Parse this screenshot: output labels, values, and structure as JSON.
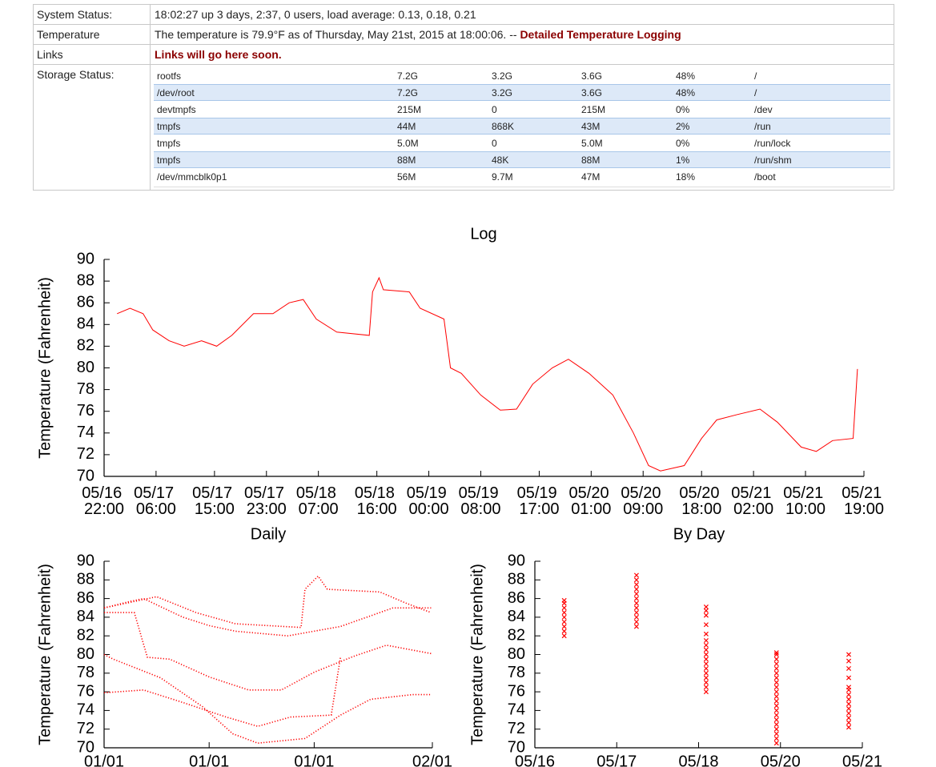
{
  "status_table": {
    "rows": [
      {
        "label": "System Status:",
        "value": "18:02:27 up 3 days, 2:37, 0 users, load average: 0.13, 0.18, 0.21"
      },
      {
        "label": "Temperature",
        "value": "The temperature is 79.9°F as of Thursday, May 21st, 2015 at 18:00:06. --",
        "link": "Detailed Temperature Logging"
      },
      {
        "label": "Links",
        "link": "Links will go here soon."
      },
      {
        "label": "Storage Status:",
        "storage": [
          [
            "rootfs",
            "7.2G",
            "3.2G",
            "3.6G",
            "48%",
            "/"
          ],
          [
            "/dev/root",
            "7.2G",
            "3.2G",
            "3.6G",
            "48%",
            "/"
          ],
          [
            "devtmpfs",
            "215M",
            "0",
            "215M",
            "0%",
            "/dev"
          ],
          [
            "tmpfs",
            "44M",
            "868K",
            "43M",
            "2%",
            "/run"
          ],
          [
            "tmpfs",
            "5.0M",
            "0",
            "5.0M",
            "0%",
            "/run/lock"
          ],
          [
            "tmpfs",
            "88M",
            "48K",
            "88M",
            "1%",
            "/run/shm"
          ],
          [
            "/dev/mmcblk0p1",
            "56M",
            "9.7M",
            "47M",
            "18%",
            "/boot"
          ]
        ]
      }
    ]
  },
  "chart_data": [
    {
      "type": "line",
      "title": "Log",
      "ylabel": "Temperature (Fahrenheit)",
      "color": "#ff0000",
      "x": [
        "05/17 00:00",
        "05/17 02:00",
        "05/17 04:00",
        "05/17 05:30",
        "05/17 08:00",
        "05/17 10:20",
        "05/17 13:00",
        "05/17 15:20",
        "05/17 17:40",
        "05/17 21:00",
        "05/18 00:00",
        "05/18 02:30",
        "05/18 04:40",
        "05/18 06:40",
        "05/18 09:50",
        "05/18 14:50",
        "05/18 15:20",
        "05/18 16:20",
        "05/18 17:00",
        "05/18 21:00",
        "05/18 22:40",
        "05/19 02:20",
        "05/19 03:20",
        "05/19 05:00",
        "05/19 08:00",
        "05/19 11:00",
        "05/19 13:30",
        "05/19 16:00",
        "05/19 19:00",
        "05/19 21:30",
        "05/20 00:40",
        "05/20 04:20",
        "05/20 07:30",
        "05/20 09:50",
        "05/20 11:40",
        "05/20 15:20",
        "05/20 18:00",
        "05/20 20:20",
        "05/20 23:30",
        "05/21 03:00",
        "05/21 05:40",
        "05/21 09:20",
        "05/21 11:40",
        "05/21 14:10",
        "05/21 17:20",
        "05/21 18:00"
      ],
      "values": [
        85.0,
        85.5,
        85.0,
        83.5,
        82.5,
        82.0,
        82.5,
        82.0,
        83.0,
        85.0,
        85.0,
        86.0,
        86.3,
        84.5,
        83.3,
        83.0,
        87.0,
        88.3,
        87.2,
        87.0,
        85.5,
        84.5,
        80.0,
        79.5,
        77.5,
        76.1,
        76.2,
        78.5,
        80.0,
        80.8,
        79.5,
        77.5,
        74.0,
        71.0,
        70.5,
        71.0,
        73.5,
        75.2,
        75.7,
        76.2,
        75.0,
        72.7,
        72.3,
        73.3,
        73.5,
        79.9
      ],
      "xlim": [
        "05/16 22:00",
        "05/21 19:00"
      ],
      "xticks": [
        "05/16 22:00",
        "05/17 06:00",
        "05/17 15:00",
        "05/17 23:00",
        "05/18 07:00",
        "05/18 16:00",
        "05/19 00:00",
        "05/19 08:00",
        "05/19 17:00",
        "05/20 01:00",
        "05/20 09:00",
        "05/20 18:00",
        "05/21 02:00",
        "05/21 10:00",
        "05/21 19:00"
      ],
      "ylim": [
        70,
        90
      ],
      "yticks": [
        70,
        72,
        74,
        76,
        78,
        80,
        82,
        84,
        86,
        88,
        90
      ]
    },
    {
      "type": "line",
      "title": "Daily",
      "ylabel": "Temperature (Fahrenheit)",
      "color": "#ff0000",
      "line_style": "dotted",
      "series": [
        {
          "x": [
            0,
            2,
            3,
            6,
            8,
            10,
            14,
            18,
            22,
            24.9
          ],
          "values": [
            85.0,
            85.7,
            86.0,
            84.0,
            83.1,
            82.5,
            82.0,
            83.0,
            85.0,
            85.0
          ]
        },
        {
          "x": [
            0,
            4,
            7,
            10,
            15,
            15.3,
            16.3,
            17,
            21,
            23,
            24.9
          ],
          "values": [
            85.0,
            86.2,
            84.5,
            83.3,
            82.9,
            87.0,
            88.4,
            87.0,
            86.7,
            85.5,
            84.5
          ]
        },
        {
          "x": [
            0,
            2.3,
            3.3,
            5,
            8,
            11,
            13.5,
            16,
            19,
            21.5,
            24.9
          ],
          "values": [
            84.5,
            84.5,
            79.7,
            79.5,
            77.6,
            76.2,
            76.2,
            78.1,
            79.8,
            81.0,
            80.1
          ]
        },
        {
          "x": [
            0,
            0.7,
            4.3,
            7.5,
            9.8,
            11.7,
            15.3,
            18,
            20.3,
            23.5,
            24.9
          ],
          "values": [
            80.0,
            79.5,
            77.5,
            74.4,
            71.5,
            70.5,
            71.0,
            73.5,
            75.2,
            75.7,
            75.7
          ]
        },
        {
          "x": [
            0,
            3,
            5.7,
            9.3,
            11.7,
            14.2,
            17.3,
            18
          ],
          "values": [
            75.9,
            76.2,
            75.0,
            73.3,
            72.3,
            73.3,
            73.5,
            79.7
          ]
        }
      ],
      "xlim": [
        0,
        25
      ],
      "xticks": [
        {
          "value": 0,
          "label": "01/01"
        },
        {
          "value": 8,
          "label": "01/01"
        },
        {
          "value": 16,
          "label": "01/01"
        },
        {
          "value": 25,
          "label": "02/01"
        }
      ],
      "ylim": [
        70,
        90
      ],
      "yticks": [
        70,
        72,
        74,
        76,
        78,
        80,
        82,
        84,
        86,
        88,
        90
      ]
    },
    {
      "type": "scatter",
      "title": "By Day",
      "ylabel": "Temperature (Fahrenheit)",
      "color": "#ff0000",
      "marker": "x",
      "groups": [
        {
          "x": "05/16 22:20",
          "values": [
            82,
            82.5,
            83,
            83.5,
            84,
            84.5,
            85,
            85.5,
            85.8
          ]
        },
        {
          "x": "05/17 23:45",
          "values": [
            83,
            83.5,
            84,
            84.5,
            85,
            85.5,
            86,
            86.5,
            87,
            87.5,
            88,
            88.5
          ]
        },
        {
          "x": "05/19 00:15",
          "values": [
            76,
            76.5,
            77,
            77.5,
            78,
            78.5,
            79,
            79.5,
            80,
            80.5,
            81,
            81.5,
            82.2,
            83.2,
            84.2,
            84.7,
            85.1
          ]
        },
        {
          "x": "05/20 01:00",
          "values": [
            70.5,
            71,
            71.5,
            72,
            72.5,
            73,
            73.5,
            74,
            74.5,
            75,
            75.5,
            76,
            76.5,
            77,
            77.5,
            78,
            78.5,
            79,
            79.5,
            80,
            80.2
          ]
        },
        {
          "x": "05/21 02:25",
          "values": [
            72.2,
            72.7,
            73.2,
            73.7,
            74.2,
            74.7,
            75.2,
            75.7,
            76.2,
            76.5,
            77.5,
            78.5,
            79.3,
            80.0
          ]
        }
      ],
      "xlim": [
        "05/16 12:00",
        "05/21 07:12"
      ],
      "xticks": [
        {
          "value": "05/16 12:00",
          "label": "05/16"
        },
        {
          "value": "05/17 16:48",
          "label": "05/17"
        },
        {
          "value": "05/18 21:36",
          "label": "05/18"
        },
        {
          "value": "05/20 02:24",
          "label": "05/20"
        },
        {
          "value": "05/21 07:12",
          "label": "05/21"
        }
      ],
      "ylim": [
        70,
        90
      ],
      "yticks": [
        70,
        72,
        74,
        76,
        78,
        80,
        82,
        84,
        86,
        88,
        90
      ]
    }
  ]
}
